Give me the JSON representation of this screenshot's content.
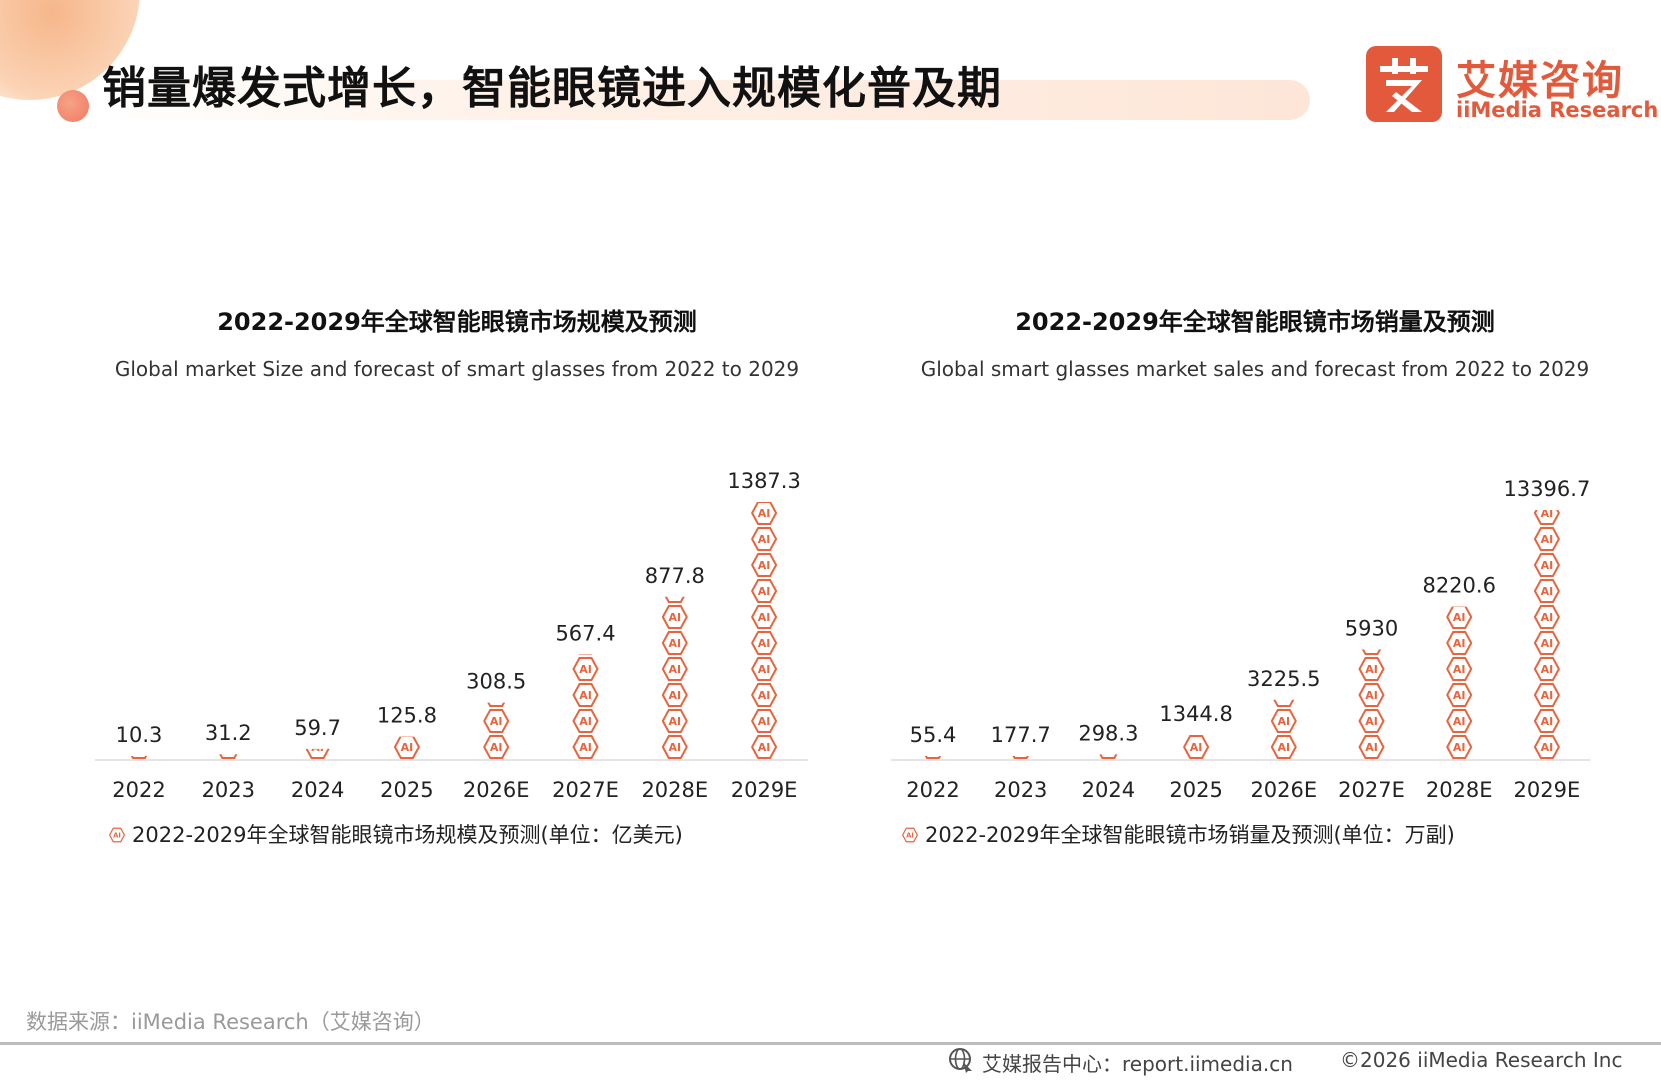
{
  "page": {
    "title": "销量爆发式增长，智能眼镜进入规模化普及期",
    "logo_cn": "艾媒咨询",
    "logo_en": "iiMedia Research",
    "source": "数据来源：iiMedia Research（艾媒咨询）",
    "footer_report": "艾媒报告中心：report.iimedia.cn",
    "footer_copyright": "©2026  iiMedia Research  Inc",
    "accent_color": "#e25a3b"
  },
  "chart_data": [
    {
      "type": "bar",
      "title": "2022-2029年全球智能眼镜市场规模及预测",
      "subtitle": "Global market Size and forecast of smart glasses from 2022 to 2029",
      "categories": [
        "2022",
        "2023",
        "2024",
        "2025",
        "2026E",
        "2027E",
        "2028E",
        "2029E"
      ],
      "series": [
        {
          "name": "2022-2029年全球智能眼镜市场规模及预测(单位：亿美元)",
          "values": [
            10.3,
            31.2,
            59.7,
            125.8,
            308.5,
            567.4,
            877.8,
            1387.3
          ],
          "labels": [
            "10.3",
            "31.2",
            "59.7",
            "125.8",
            "308.5",
            "567.4",
            "877.8",
            "1387.3"
          ]
        }
      ],
      "legend_position": "bottom-left",
      "bar_icon": "ai-chip-icon",
      "bar_icon_text": "AI",
      "color": "#e8643f",
      "grid": false,
      "yaxis_visible": false
    },
    {
      "type": "bar",
      "title": "2022-2029年全球智能眼镜市场销量及预测",
      "subtitle": "Global smart glasses market sales and forecast from 2022 to 2029",
      "categories": [
        "2022",
        "2023",
        "2024",
        "2025",
        "2026E",
        "2027E",
        "2028E",
        "2029E"
      ],
      "series": [
        {
          "name": "2022-2029年全球智能眼镜市场销量及预测(单位：万副)",
          "values": [
            55.4,
            177.7,
            298.3,
            1344.8,
            3225.5,
            5930,
            8220.6,
            13396.7
          ],
          "labels": [
            "55.4",
            "177.7",
            "298.3",
            "1344.8",
            "3225.5",
            "5930",
            "8220.6",
            "13396.7"
          ]
        }
      ],
      "legend_position": "bottom-left",
      "bar_icon": "ai-chip-icon",
      "bar_icon_text": "AI",
      "color": "#e8643f",
      "grid": false,
      "yaxis_visible": false
    }
  ]
}
